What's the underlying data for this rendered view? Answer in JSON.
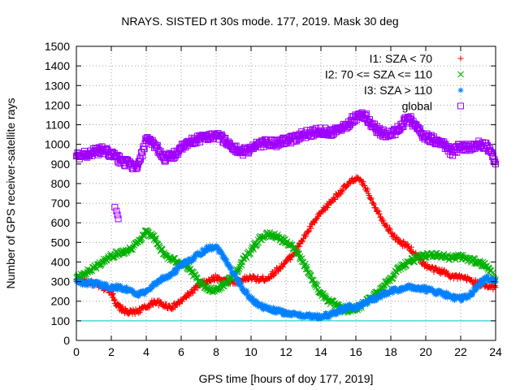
{
  "chart_data": {
    "type": "scatter",
    "title": "NRAYS. SISTED rt 30s mode. 177, 2019. Mask 30 deg",
    "xlabel": "GPS time [hours of doy 177, 2019]",
    "ylabel": "Number of GPS receiver-satellite rays",
    "xlim": [
      0,
      24
    ],
    "ylim": [
      0,
      1500
    ],
    "xticks": [
      "0",
      "2",
      "4",
      "6",
      "8",
      "10",
      "12",
      "14",
      "16",
      "18",
      "20",
      "22",
      "24"
    ],
    "yticks": [
      "0",
      "100",
      "200",
      "300",
      "400",
      "500",
      "600",
      "700",
      "800",
      "900",
      "1000",
      "1100",
      "1200",
      "1300",
      "1400",
      "1500"
    ],
    "grid": true,
    "reference_line": {
      "y": 100,
      "color": "#00c8c8"
    },
    "legend_position": "top-right",
    "series": [
      {
        "name": "I1: SZA < 70",
        "marker": "+",
        "color": "#ff0000",
        "x": [
          0,
          0.5,
          1,
          1.5,
          2,
          2.3,
          2.6,
          3,
          3.5,
          4,
          4.5,
          5,
          5.5,
          6,
          6.5,
          7,
          7.5,
          8,
          8.5,
          9,
          9.5,
          10,
          10.5,
          11,
          11.5,
          12,
          12.5,
          13,
          13.5,
          14,
          14.5,
          15,
          15.5,
          16,
          16.5,
          17,
          17.5,
          18,
          18.5,
          19,
          19.5,
          20,
          20.5,
          21,
          21.5,
          22,
          22.5,
          23,
          23.5,
          24
        ],
        "y": [
          310,
          300,
          290,
          270,
          250,
          180,
          160,
          140,
          150,
          170,
          200,
          180,
          170,
          200,
          240,
          280,
          300,
          320,
          310,
          300,
          310,
          320,
          310,
          320,
          360,
          400,
          450,
          520,
          590,
          650,
          700,
          750,
          790,
          830,
          790,
          700,
          620,
          550,
          500,
          480,
          430,
          380,
          360,
          350,
          330,
          320,
          310,
          290,
          280,
          270
        ]
      },
      {
        "name": "I2: 70 <= SZA <= 110",
        "marker": "x",
        "color": "#00b000",
        "x": [
          0,
          0.5,
          1,
          1.5,
          2,
          2.5,
          3,
          3.5,
          4,
          4.5,
          5,
          5.5,
          6,
          6.5,
          7,
          7.5,
          8,
          8.5,
          9,
          9.5,
          10,
          10.5,
          11,
          11.5,
          12,
          12.5,
          13,
          13.5,
          14,
          14.5,
          15,
          15.5,
          16,
          16.5,
          17,
          17.5,
          18,
          18.5,
          19,
          19.5,
          20,
          20.5,
          21,
          21.5,
          22,
          22.5,
          23,
          23.5,
          24
        ],
        "y": [
          320,
          340,
          370,
          400,
          430,
          450,
          460,
          500,
          560,
          520,
          440,
          410,
          400,
          360,
          300,
          260,
          260,
          290,
          330,
          400,
          460,
          520,
          540,
          530,
          500,
          470,
          400,
          310,
          240,
          200,
          170,
          150,
          160,
          190,
          230,
          270,
          320,
          370,
          400,
          420,
          430,
          440,
          430,
          420,
          430,
          410,
          400,
          380,
          310
        ]
      },
      {
        "name": "I3: SZA > 110",
        "marker": "*",
        "color": "#0080ff",
        "x": [
          0,
          0.5,
          1,
          1.5,
          2,
          2.5,
          3,
          3.5,
          4,
          4.5,
          5,
          5.5,
          6,
          6.5,
          7,
          7.5,
          8,
          8.5,
          9,
          9.5,
          10,
          10.5,
          11,
          11.5,
          12,
          12.5,
          13,
          13.5,
          14,
          14.5,
          15,
          15.5,
          16,
          16.5,
          17,
          17.5,
          18,
          18.5,
          19,
          19.5,
          20,
          20.5,
          21,
          21.5,
          22,
          22.5,
          23,
          23.5,
          24
        ],
        "y": [
          300,
          290,
          290,
          280,
          270,
          270,
          260,
          230,
          250,
          290,
          320,
          340,
          380,
          410,
          440,
          470,
          480,
          420,
          340,
          270,
          210,
          180,
          160,
          150,
          140,
          130,
          130,
          120,
          120,
          130,
          150,
          170,
          170,
          190,
          210,
          230,
          250,
          260,
          270,
          270,
          260,
          250,
          240,
          220,
          210,
          230,
          280,
          320,
          300
        ]
      },
      {
        "name": "global",
        "marker": "square",
        "color": "#a000ff",
        "x": [
          0,
          0.5,
          1,
          1.5,
          2,
          2.5,
          3,
          3.5,
          4,
          4.5,
          5,
          5.5,
          6,
          6.5,
          7,
          7.5,
          8,
          8.5,
          9,
          9.5,
          10,
          10.5,
          11,
          11.5,
          12,
          12.5,
          13,
          13.5,
          14,
          14.5,
          15,
          15.5,
          16,
          16.5,
          17,
          17.5,
          18,
          18.5,
          19,
          19.5,
          20,
          20.5,
          21,
          21.5,
          22,
          22.5,
          23,
          23.5,
          24
        ],
        "y": [
          940,
          950,
          960,
          970,
          950,
          920,
          900,
          880,
          1020,
          1000,
          930,
          940,
          980,
          1010,
          1030,
          1040,
          1050,
          1020,
          980,
          960,
          980,
          1000,
          1010,
          1000,
          1020,
          1030,
          1050,
          1060,
          1070,
          1060,
          1080,
          1100,
          1140,
          1150,
          1090,
          1060,
          1050,
          1080,
          1140,
          1080,
          1040,
          1020,
          1000,
          960,
          990,
          980,
          1000,
          990,
          900
        ]
      }
    ],
    "global_outliers": {
      "x": [
        2.2,
        2.3,
        2.35,
        2.4
      ],
      "y": [
        680,
        660,
        640,
        620
      ]
    }
  }
}
